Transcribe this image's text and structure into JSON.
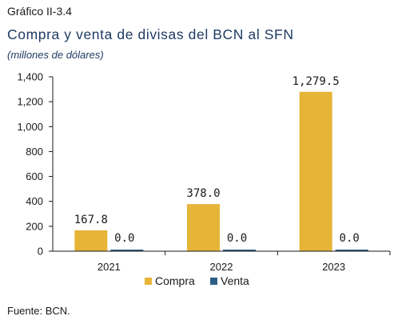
{
  "header": {
    "figure_label": "Gráfico II-3.4",
    "title": "Compra y venta de divisas del BCN al SFN",
    "subtitle": "(millones de dólares)"
  },
  "footer": {
    "source": "Fuente: BCN."
  },
  "chart_data": {
    "type": "bar",
    "title": "Compra y venta de divisas del BCN al SFN",
    "subtitle": "(millones de dólares)",
    "xlabel": "",
    "ylabel": "",
    "categories": [
      "2021",
      "2022",
      "2023"
    ],
    "series": [
      {
        "name": "Compra",
        "color": "#e6b437",
        "values": [
          167.8,
          378.0,
          1279.5
        ],
        "labels": [
          "167.8",
          "378.0",
          "1,279.5"
        ]
      },
      {
        "name": "Venta",
        "color": "#2e5f86",
        "values": [
          0.0,
          0.0,
          0.0
        ],
        "labels": [
          "0.0",
          "0.0",
          "0.0"
        ]
      }
    ],
    "ylim": [
      0,
      1400
    ],
    "yticks": [
      0,
      200,
      400,
      600,
      800,
      1000,
      1200,
      1400
    ],
    "ytick_labels": [
      "0",
      "200",
      "400",
      "600",
      "800",
      "1,000",
      "1,200",
      "1,400"
    ],
    "grid": false,
    "legend_position": "bottom-center"
  }
}
